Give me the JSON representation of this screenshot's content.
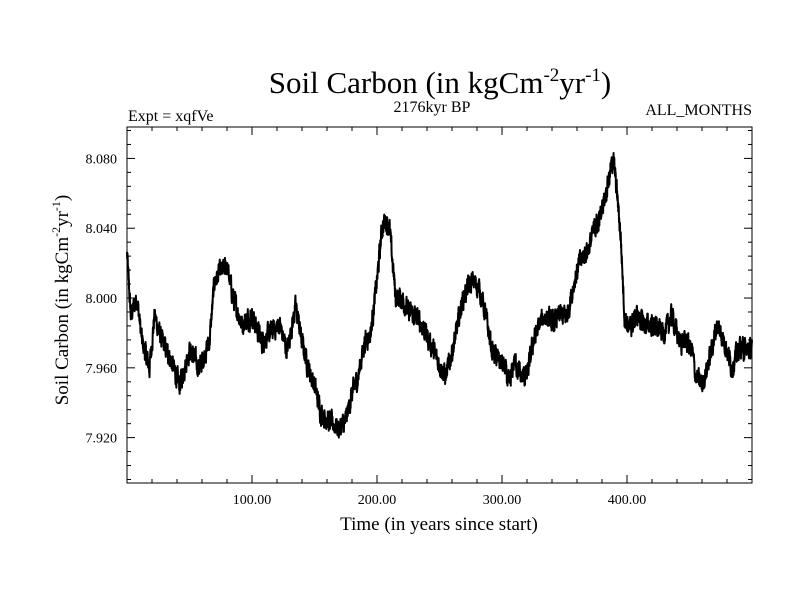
{
  "chart_data": {
    "type": "line",
    "title": "Soil Carbon (in kgCm",
    "title_sup1": "-2",
    "title_mid": "yr",
    "title_sup2": "-1",
    "title_end": ")",
    "subtitle_left": "Expt = xqfVe",
    "subtitle_center": "2176kyr BP",
    "subtitle_right": "ALL_MONTHS",
    "xlabel": "Time (in years since start)",
    "ylabel": "Soil Carbon (in kgCm",
    "ylabel_sup1": "-2",
    "ylabel_mid": "yr",
    "ylabel_sup2": "-1",
    "ylabel_end": ")",
    "xlim": [
      0,
      500
    ],
    "ylim": [
      7.894,
      8.098
    ],
    "xticks": [
      100,
      200,
      300,
      400
    ],
    "xtick_labels": [
      "100.00",
      "200.00",
      "300.00",
      "400.00"
    ],
    "yticks": [
      7.92,
      7.96,
      8.0,
      8.04,
      8.08
    ],
    "ytick_labels": [
      "7.920",
      "7.960",
      "8.000",
      "8.040",
      "8.080"
    ],
    "grid": false,
    "series": [
      {
        "name": "soil_carbon",
        "anchors_x": [
          0,
          3,
          8,
          12,
          18,
          22,
          28,
          35,
          42,
          50,
          58,
          66,
          70,
          75,
          80,
          85,
          92,
          100,
          108,
          115,
          122,
          128,
          135,
          140,
          145,
          150,
          155,
          160,
          165,
          170,
          175,
          180,
          185,
          190,
          195,
          200,
          204,
          207,
          210,
          215,
          220,
          225,
          230,
          236,
          242,
          248,
          255,
          262,
          268,
          272,
          277,
          282,
          287,
          292,
          297,
          302,
          306,
          310,
          315,
          320,
          325,
          330,
          335,
          340,
          346,
          352,
          358,
          362,
          366,
          370,
          374,
          378,
          382,
          386,
          389,
          392,
          395,
          398,
          402,
          408,
          414,
          420,
          425,
          430,
          436,
          442,
          447,
          452,
          455,
          460,
          466,
          472,
          478,
          484,
          490,
          496,
          500
        ],
        "anchors_y": [
          8.025,
          7.99,
          8.0,
          7.975,
          7.96,
          7.99,
          7.975,
          7.965,
          7.95,
          7.97,
          7.96,
          7.975,
          8.01,
          8.015,
          8.018,
          8.0,
          7.985,
          7.99,
          7.975,
          7.98,
          7.985,
          7.97,
          7.995,
          7.975,
          7.96,
          7.95,
          7.935,
          7.93,
          7.928,
          7.925,
          7.93,
          7.945,
          7.955,
          7.975,
          7.98,
          8.01,
          8.04,
          8.045,
          8.04,
          8.0,
          8.0,
          7.992,
          7.99,
          7.985,
          7.975,
          7.965,
          7.955,
          7.975,
          7.998,
          8.005,
          8.01,
          8.005,
          7.99,
          7.97,
          7.965,
          7.96,
          7.95,
          7.965,
          7.955,
          7.955,
          7.975,
          7.985,
          7.99,
          7.985,
          7.99,
          7.99,
          8.01,
          8.02,
          8.025,
          8.03,
          8.04,
          8.045,
          8.058,
          8.07,
          8.08,
          8.06,
          8.035,
          7.99,
          7.982,
          7.99,
          7.985,
          7.985,
          7.982,
          7.98,
          7.99,
          7.975,
          7.975,
          7.97,
          7.955,
          7.95,
          7.965,
          7.985,
          7.975,
          7.96,
          7.972,
          7.97,
          7.97
        ],
        "noise_amplitude": 0.0085,
        "samples": 4000
      }
    ]
  }
}
